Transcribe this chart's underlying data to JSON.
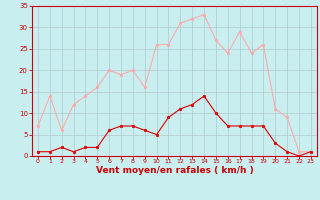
{
  "x": [
    0,
    1,
    2,
    3,
    4,
    5,
    6,
    7,
    8,
    9,
    10,
    11,
    12,
    13,
    14,
    15,
    16,
    17,
    18,
    19,
    20,
    21,
    22,
    23
  ],
  "wind_avg": [
    1,
    1,
    2,
    1,
    2,
    2,
    6,
    7,
    7,
    6,
    5,
    9,
    11,
    12,
    14,
    10,
    7,
    7,
    7,
    7,
    3,
    1,
    0,
    1
  ],
  "wind_gust": [
    7,
    14,
    6,
    12,
    14,
    16,
    20,
    19,
    20,
    16,
    26,
    26,
    31,
    32,
    33,
    27,
    24,
    29,
    24,
    26,
    11,
    9,
    1,
    1
  ],
  "line_color_avg": "#dd0000",
  "line_color_gust": "#ffaaaa",
  "bg_color": "#c8eef0",
  "grid_color": "#b0c8c8",
  "xlabel": "Vent moyen/en rafales ( km/h )",
  "xlabel_color": "#cc0000",
  "tick_color": "#cc0000",
  "spine_color": "#cc0000",
  "ylim": [
    0,
    35
  ],
  "yticks": [
    0,
    5,
    10,
    15,
    20,
    25,
    30,
    35
  ],
  "xlim": [
    -0.5,
    23.5
  ]
}
